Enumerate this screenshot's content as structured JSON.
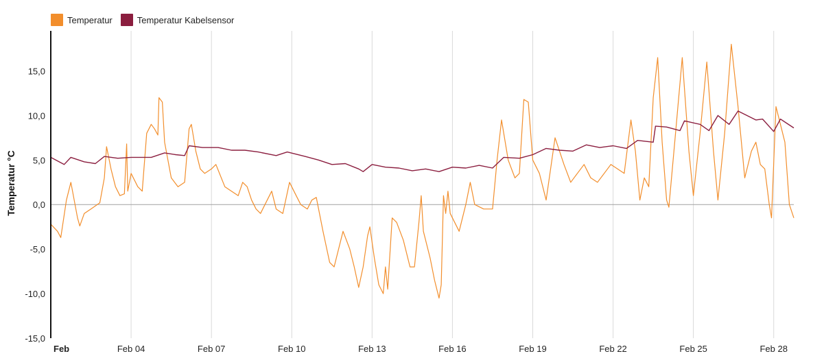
{
  "legend": [
    {
      "name": "Temperatur",
      "color": "#f28e2c"
    },
    {
      "name": "Temperatur Kabelsensor",
      "color": "#8b1e3f"
    }
  ],
  "chart_data": {
    "type": "line",
    "ylabel": "Temperatur °C",
    "xlabel": "",
    "ylim": [
      -15,
      19.5
    ],
    "xlim": [
      "Feb 01",
      "Feb 28 18:00"
    ],
    "grid": "vertical",
    "legend_position": "top-left",
    "y_ticks": [
      {
        "value": -15,
        "label": "-15,0"
      },
      {
        "value": -10,
        "label": "-10,0"
      },
      {
        "value": -5,
        "label": "-5,0"
      },
      {
        "value": 0,
        "label": "0,0"
      },
      {
        "value": 5,
        "label": "5,0"
      },
      {
        "value": 10,
        "label": "10,0"
      },
      {
        "value": 15,
        "label": "15,0"
      }
    ],
    "x_ticks": [
      {
        "date": "Feb 01",
        "label": "Feb",
        "bold": true
      },
      {
        "date": "Feb 04",
        "label": "Feb 04"
      },
      {
        "date": "Feb 07",
        "label": "Feb 07"
      },
      {
        "date": "Feb 10",
        "label": "Feb 10"
      },
      {
        "date": "Feb 13",
        "label": "Feb 13"
      },
      {
        "date": "Feb 16",
        "label": "Feb 16"
      },
      {
        "date": "Feb 19",
        "label": "Feb 19"
      },
      {
        "date": "Feb 22",
        "label": "Feb 22"
      },
      {
        "date": "Feb 25",
        "label": "Feb 25"
      },
      {
        "date": "Feb 28",
        "label": "Feb 28"
      }
    ],
    "series": [
      {
        "name": "Temperatur",
        "color": "#f28e2c",
        "points": [
          [
            "Feb 01 00:00",
            -2.2
          ],
          [
            "Feb 01 06:00",
            -3
          ],
          [
            "Feb 01 09:00",
            -3.7
          ],
          [
            "Feb 01 14:00",
            0.5
          ],
          [
            "Feb 01 18:00",
            2.5
          ],
          [
            "Feb 02 00:00",
            -1.5
          ],
          [
            "Feb 02 02:00",
            -2.4
          ],
          [
            "Feb 02 06:00",
            -1
          ],
          [
            "Feb 02 12:00",
            -0.5
          ],
          [
            "Feb 02 20:00",
            0.2
          ],
          [
            "Feb 03 00:00",
            3
          ],
          [
            "Feb 03 02:00",
            6.5
          ],
          [
            "Feb 03 06:00",
            4
          ],
          [
            "Feb 03 10:00",
            2
          ],
          [
            "Feb 03 14:00",
            1
          ],
          [
            "Feb 03 18:00",
            1.2
          ],
          [
            "Feb 03 20:00",
            6.8
          ],
          [
            "Feb 03 21:00",
            1.5
          ],
          [
            "Feb 04 00:00",
            3.5
          ],
          [
            "Feb 04 06:00",
            2
          ],
          [
            "Feb 04 10:00",
            1.5
          ],
          [
            "Feb 04 14:00",
            8
          ],
          [
            "Feb 04 18:00",
            9
          ],
          [
            "Feb 04 21:00",
            8.5
          ],
          [
            "Feb 05 00:00",
            7.8
          ],
          [
            "Feb 05 01:00",
            12
          ],
          [
            "Feb 05 04:00",
            11.5
          ],
          [
            "Feb 05 06:00",
            7
          ],
          [
            "Feb 05 12:00",
            3
          ],
          [
            "Feb 05 18:00",
            2
          ],
          [
            "Feb 06 00:00",
            2.5
          ],
          [
            "Feb 06 04:00",
            8.5
          ],
          [
            "Feb 06 06:00",
            9
          ],
          [
            "Feb 06 10:00",
            6
          ],
          [
            "Feb 06 14:00",
            4
          ],
          [
            "Feb 06 18:00",
            3.5
          ],
          [
            "Feb 07 00:00",
            4
          ],
          [
            "Feb 07 04:00",
            4.5
          ],
          [
            "Feb 07 12:00",
            2
          ],
          [
            "Feb 07 18:00",
            1.5
          ],
          [
            "Feb 08 00:00",
            1
          ],
          [
            "Feb 08 04:00",
            2.5
          ],
          [
            "Feb 08 08:00",
            2
          ],
          [
            "Feb 08 12:00",
            0.5
          ],
          [
            "Feb 08 16:00",
            -0.5
          ],
          [
            "Feb 08 20:00",
            -1
          ],
          [
            "Feb 09 00:00",
            0
          ],
          [
            "Feb 09 06:00",
            1.5
          ],
          [
            "Feb 09 10:00",
            -0.5
          ],
          [
            "Feb 09 16:00",
            -1
          ],
          [
            "Feb 09 22:00",
            2.5
          ],
          [
            "Feb 10 04:00",
            1
          ],
          [
            "Feb 10 08:00",
            0
          ],
          [
            "Feb 10 14:00",
            -0.5
          ],
          [
            "Feb 10 18:00",
            0.5
          ],
          [
            "Feb 10 22:00",
            0.8
          ],
          [
            "Feb 11 04:00",
            -3
          ],
          [
            "Feb 11 10:00",
            -6.5
          ],
          [
            "Feb 11 14:00",
            -7
          ],
          [
            "Feb 11 18:00",
            -5
          ],
          [
            "Feb 11 22:00",
            -3
          ],
          [
            "Feb 12 04:00",
            -5
          ],
          [
            "Feb 12 08:00",
            -7
          ],
          [
            "Feb 12 12:00",
            -9.3
          ],
          [
            "Feb 12 16:00",
            -7
          ],
          [
            "Feb 12 20:00",
            -3.5
          ],
          [
            "Feb 12 22:00",
            -2.5
          ],
          [
            "Feb 13 02:00",
            -6
          ],
          [
            "Feb 13 06:00",
            -9
          ],
          [
            "Feb 13 10:00",
            -10
          ],
          [
            "Feb 13 12:00",
            -7
          ],
          [
            "Feb 13 14:00",
            -9.5
          ],
          [
            "Feb 13 18:00",
            -1.5
          ],
          [
            "Feb 13 22:00",
            -2
          ],
          [
            "Feb 14 04:00",
            -4
          ],
          [
            "Feb 14 10:00",
            -7
          ],
          [
            "Feb 14 14:00",
            -7
          ],
          [
            "Feb 14 18:00",
            -2
          ],
          [
            "Feb 14 20:00",
            1
          ],
          [
            "Feb 14 22:00",
            -3
          ],
          [
            "Feb 15 04:00",
            -6
          ],
          [
            "Feb 15 08:00",
            -8.5
          ],
          [
            "Feb 15 12:00",
            -10.5
          ],
          [
            "Feb 15 14:00",
            -9
          ],
          [
            "Feb 15 16:00",
            1
          ],
          [
            "Feb 15 18:00",
            -1
          ],
          [
            "Feb 15 20:00",
            1.5
          ],
          [
            "Feb 15 22:00",
            -1
          ],
          [
            "Feb 16 02:00",
            -2
          ],
          [
            "Feb 16 06:00",
            -3
          ],
          [
            "Feb 16 12:00",
            0
          ],
          [
            "Feb 16 16:00",
            2.5
          ],
          [
            "Feb 16 20:00",
            0
          ],
          [
            "Feb 17 04:00",
            -0.5
          ],
          [
            "Feb 17 12:00",
            -0.5
          ],
          [
            "Feb 17 16:00",
            5
          ],
          [
            "Feb 17 20:00",
            9.5
          ],
          [
            "Feb 18 02:00",
            5
          ],
          [
            "Feb 18 08:00",
            3
          ],
          [
            "Feb 18 12:00",
            3.5
          ],
          [
            "Feb 18 16:00",
            11.8
          ],
          [
            "Feb 18 20:00",
            11.5
          ],
          [
            "Feb 19 00:00",
            5
          ],
          [
            "Feb 19 06:00",
            3.5
          ],
          [
            "Feb 19 12:00",
            0.5
          ],
          [
            "Feb 19 16:00",
            4
          ],
          [
            "Feb 19 20:00",
            7.5
          ],
          [
            "Feb 20 04:00",
            4.5
          ],
          [
            "Feb 20 10:00",
            2.5
          ],
          [
            "Feb 20 16:00",
            3.5
          ],
          [
            "Feb 20 22:00",
            4.5
          ],
          [
            "Feb 21 04:00",
            3
          ],
          [
            "Feb 21 10:00",
            2.5
          ],
          [
            "Feb 21 16:00",
            3.5
          ],
          [
            "Feb 21 22:00",
            4.5
          ],
          [
            "Feb 22 04:00",
            4
          ],
          [
            "Feb 22 10:00",
            3.5
          ],
          [
            "Feb 22 16:00",
            9.5
          ],
          [
            "Feb 22 20:00",
            6
          ],
          [
            "Feb 23 00:00",
            0.5
          ],
          [
            "Feb 23 04:00",
            3
          ],
          [
            "Feb 23 08:00",
            2
          ],
          [
            "Feb 23 12:00",
            12
          ],
          [
            "Feb 23 16:00",
            16.5
          ],
          [
            "Feb 23 20:00",
            7
          ],
          [
            "Feb 24 00:00",
            0.5
          ],
          [
            "Feb 24 02:00",
            -0.3
          ],
          [
            "Feb 24 08:00",
            8
          ],
          [
            "Feb 24 14:00",
            16.5
          ],
          [
            "Feb 24 20:00",
            6
          ],
          [
            "Feb 25 00:00",
            1
          ],
          [
            "Feb 25 06:00",
            8
          ],
          [
            "Feb 25 12:00",
            16
          ],
          [
            "Feb 25 18:00",
            6
          ],
          [
            "Feb 25 22:00",
            0.5
          ],
          [
            "Feb 26 04:00",
            8
          ],
          [
            "Feb 26 10:00",
            18
          ],
          [
            "Feb 26 16:00",
            11
          ],
          [
            "Feb 26 22:00",
            3
          ],
          [
            "Feb 27 04:00",
            6
          ],
          [
            "Feb 27 08:00",
            7
          ],
          [
            "Feb 27 12:00",
            4.5
          ],
          [
            "Feb 27 16:00",
            4
          ],
          [
            "Feb 27 20:00",
            0
          ],
          [
            "Feb 27 22:00",
            -1.5
          ],
          [
            "Feb 28 02:00",
            11
          ],
          [
            "Feb 28 06:00",
            9
          ],
          [
            "Feb 28 10:00",
            7
          ],
          [
            "Feb 28 14:00",
            0
          ],
          [
            "Feb 28 18:00",
            -1.5
          ]
        ]
      },
      {
        "name": "Temperatur Kabelsensor",
        "color": "#8b1e3f",
        "points": [
          [
            "Feb 01 00:00",
            5.3
          ],
          [
            "Feb 01 12:00",
            4.5
          ],
          [
            "Feb 01 18:00",
            5.3
          ],
          [
            "Feb 02 06:00",
            4.8
          ],
          [
            "Feb 02 16:00",
            4.6
          ],
          [
            "Feb 03 00:00",
            5.4
          ],
          [
            "Feb 03 12:00",
            5.2
          ],
          [
            "Feb 04 00:00",
            5.3
          ],
          [
            "Feb 04 18:00",
            5.3
          ],
          [
            "Feb 05 06:00",
            5.8
          ],
          [
            "Feb 05 16:00",
            5.6
          ],
          [
            "Feb 06 00:00",
            5.5
          ],
          [
            "Feb 06 04:00",
            6.6
          ],
          [
            "Feb 06 16:00",
            6.4
          ],
          [
            "Feb 07 06:00",
            6.4
          ],
          [
            "Feb 07 18:00",
            6.1
          ],
          [
            "Feb 08 06:00",
            6.1
          ],
          [
            "Feb 08 18:00",
            5.9
          ],
          [
            "Feb 09 10:00",
            5.5
          ],
          [
            "Feb 09 20:00",
            5.9
          ],
          [
            "Feb 10 12:00",
            5.4
          ],
          [
            "Feb 11 00:00",
            5.0
          ],
          [
            "Feb 11 12:00",
            4.5
          ],
          [
            "Feb 12 00:00",
            4.6
          ],
          [
            "Feb 12 12:00",
            4.0
          ],
          [
            "Feb 12 16:00",
            3.7
          ],
          [
            "Feb 13 00:00",
            4.5
          ],
          [
            "Feb 13 12:00",
            4.2
          ],
          [
            "Feb 14 00:00",
            4.1
          ],
          [
            "Feb 14 12:00",
            3.8
          ],
          [
            "Feb 15 00:00",
            4.0
          ],
          [
            "Feb 15 12:00",
            3.7
          ],
          [
            "Feb 16 00:00",
            4.2
          ],
          [
            "Feb 16 12:00",
            4.1
          ],
          [
            "Feb 17 00:00",
            4.4
          ],
          [
            "Feb 17 12:00",
            4.1
          ],
          [
            "Feb 17 22:00",
            5.3
          ],
          [
            "Feb 18 12:00",
            5.2
          ],
          [
            "Feb 19 00:00",
            5.6
          ],
          [
            "Feb 19 12:00",
            6.3
          ],
          [
            "Feb 20 00:00",
            6.1
          ],
          [
            "Feb 20 12:00",
            6.0
          ],
          [
            "Feb 21 00:00",
            6.7
          ],
          [
            "Feb 21 12:00",
            6.4
          ],
          [
            "Feb 22 00:00",
            6.6
          ],
          [
            "Feb 22 12:00",
            6.3
          ],
          [
            "Feb 22 22:00",
            7.2
          ],
          [
            "Feb 23 12:00",
            7.0
          ],
          [
            "Feb 23 14:00",
            8.8
          ],
          [
            "Feb 24 00:00",
            8.7
          ],
          [
            "Feb 24 12:00",
            8.3
          ],
          [
            "Feb 24 16:00",
            9.4
          ],
          [
            "Feb 25 06:00",
            9.0
          ],
          [
            "Feb 25 14:00",
            8.3
          ],
          [
            "Feb 25 22:00",
            10.0
          ],
          [
            "Feb 26 08:00",
            9.0
          ],
          [
            "Feb 26 16:00",
            10.5
          ],
          [
            "Feb 27 00:00",
            10.0
          ],
          [
            "Feb 27 08:00",
            9.5
          ],
          [
            "Feb 27 14:00",
            9.6
          ],
          [
            "Feb 28 00:00",
            8.2
          ],
          [
            "Feb 28 06:00",
            9.6
          ],
          [
            "Feb 28 18:00",
            8.6
          ]
        ]
      }
    ]
  }
}
